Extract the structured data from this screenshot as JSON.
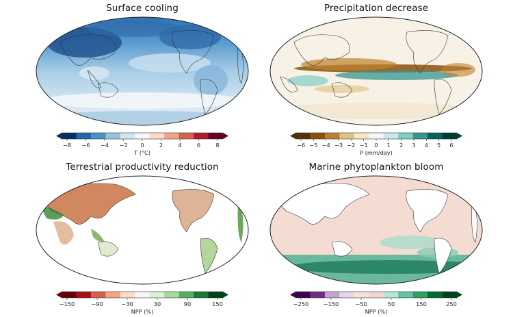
{
  "panels": [
    {
      "id": "surface",
      "title": "Surface cooling",
      "colorbar": {
        "label": "T (°C)",
        "ticks": [
          "−8",
          "−6",
          "−4",
          "−2",
          "0",
          "2",
          "4",
          "6",
          "8"
        ],
        "colors": [
          "#053061",
          "#2166ac",
          "#4393c3",
          "#92c5de",
          "#d1e5f0",
          "#f7f7f7",
          "#fddbc7",
          "#f4a582",
          "#d6604d",
          "#b2182b",
          "#67001f"
        ]
      }
    },
    {
      "id": "precip",
      "title": "Precipitation decrease",
      "colorbar": {
        "label": "P (mm/day)",
        "ticks": [
          "−6",
          "−5",
          "−4",
          "−3",
          "−2",
          "−1",
          "0",
          "1",
          "2",
          "3",
          "4",
          "5",
          "6"
        ],
        "colors": [
          "#543005",
          "#8c510a",
          "#bf812d",
          "#dfc27d",
          "#f6e8c3",
          "#f5f5f5",
          "#c7eae5",
          "#80cdc1",
          "#35978f",
          "#01665e",
          "#003c30"
        ]
      }
    },
    {
      "id": "terrestrial",
      "title": "Terrestrial productivity reduction",
      "colorbar": {
        "label": "NPP (%)",
        "ticks": [
          "−150",
          "−90",
          "−30",
          "30",
          "90",
          "150"
        ],
        "colors": [
          "#67000d",
          "#a50f15",
          "#d6604d",
          "#f4a582",
          "#fddbc7",
          "#f7f7f7",
          "#d9f0d3",
          "#a6dba0",
          "#5aae61",
          "#1b7837",
          "#00441b"
        ]
      }
    },
    {
      "id": "marine",
      "title": "Marine phytoplankton bloom",
      "colorbar": {
        "label": "NPP (%)",
        "ticks": [
          "−250",
          "−150",
          "−50",
          "50",
          "150",
          "250"
        ],
        "colors": [
          "#40004b",
          "#762a83",
          "#c2a5cf",
          "#e7d4e8",
          "#f7e1d9",
          "#f2d7cf",
          "#b7e3d8",
          "#66c2a4",
          "#2ca25f",
          "#006d2c",
          "#00441b"
        ]
      }
    }
  ]
}
